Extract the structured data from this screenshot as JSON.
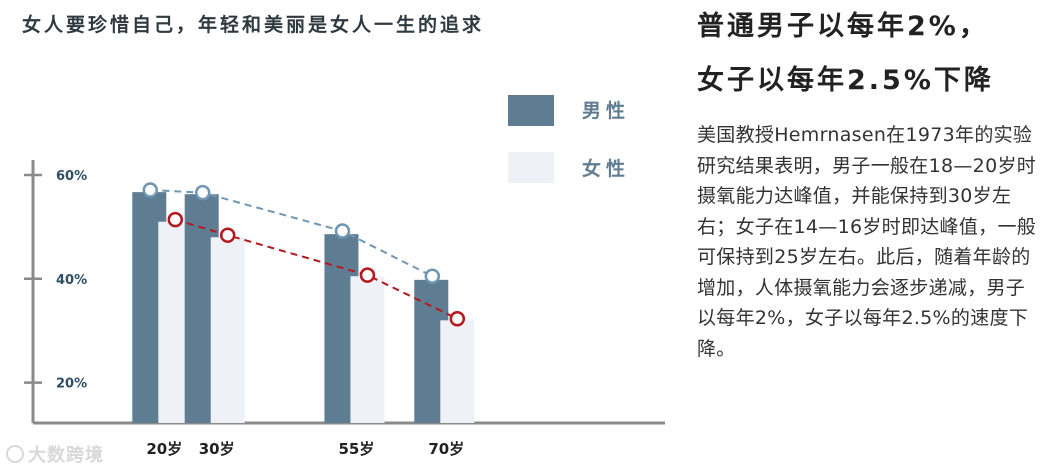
{
  "chart_title": "女人要珍惜自己，年轻和美丽是女人一生的追求",
  "right": {
    "headline_1": "普通男子以每年2%，",
    "headline_2": "女子以每年2.5%下降",
    "body": "美国教授Hemrnasen在1973年的实验研究结果表明，男子一般在18—20岁时摄氧能力达峰值，并能保持到30岁左右；女子在14—16岁时即达峰值，一般可保持到25岁左右。此后，随着年龄的增加，人体摄氧能力会逐步递减，男子以每年2%，女子以每年2.5%的速度下降。"
  },
  "watermark": "大数跨境",
  "colors": {
    "male_bar": "#5e7d93",
    "female_bar": "#eef2f7",
    "male_line": "#6f97b3",
    "female_line": "#b5191f",
    "axis": "#8a8a8a",
    "tick_label": "#2c4f66"
  },
  "chart_data": {
    "type": "bar",
    "title": "女人要珍惜自己，年轻和美丽是女人一生的追求",
    "categories": [
      "20岁",
      "30岁",
      "55岁",
      "70岁"
    ],
    "x_positions": [
      20,
      30,
      55,
      70
    ],
    "ylim": [
      11,
      62
    ],
    "yticks": [
      {
        "value": 20,
        "label": "20%"
      },
      {
        "value": 40,
        "label": "40%"
      },
      {
        "value": 60,
        "label": "60%"
      }
    ],
    "series": [
      {
        "name": "男性",
        "values": [
          56.7,
          56.3,
          48.6,
          39.8
        ],
        "marker_values": [
          57.1,
          56.6,
          49.2,
          40.5
        ]
      },
      {
        "name": "女性",
        "values": [
          51,
          48,
          40.5,
          32
        ],
        "marker_values": [
          51.4,
          48.4,
          40.7,
          32.3
        ]
      }
    ],
    "legend_position": "top-right",
    "grid": false
  }
}
